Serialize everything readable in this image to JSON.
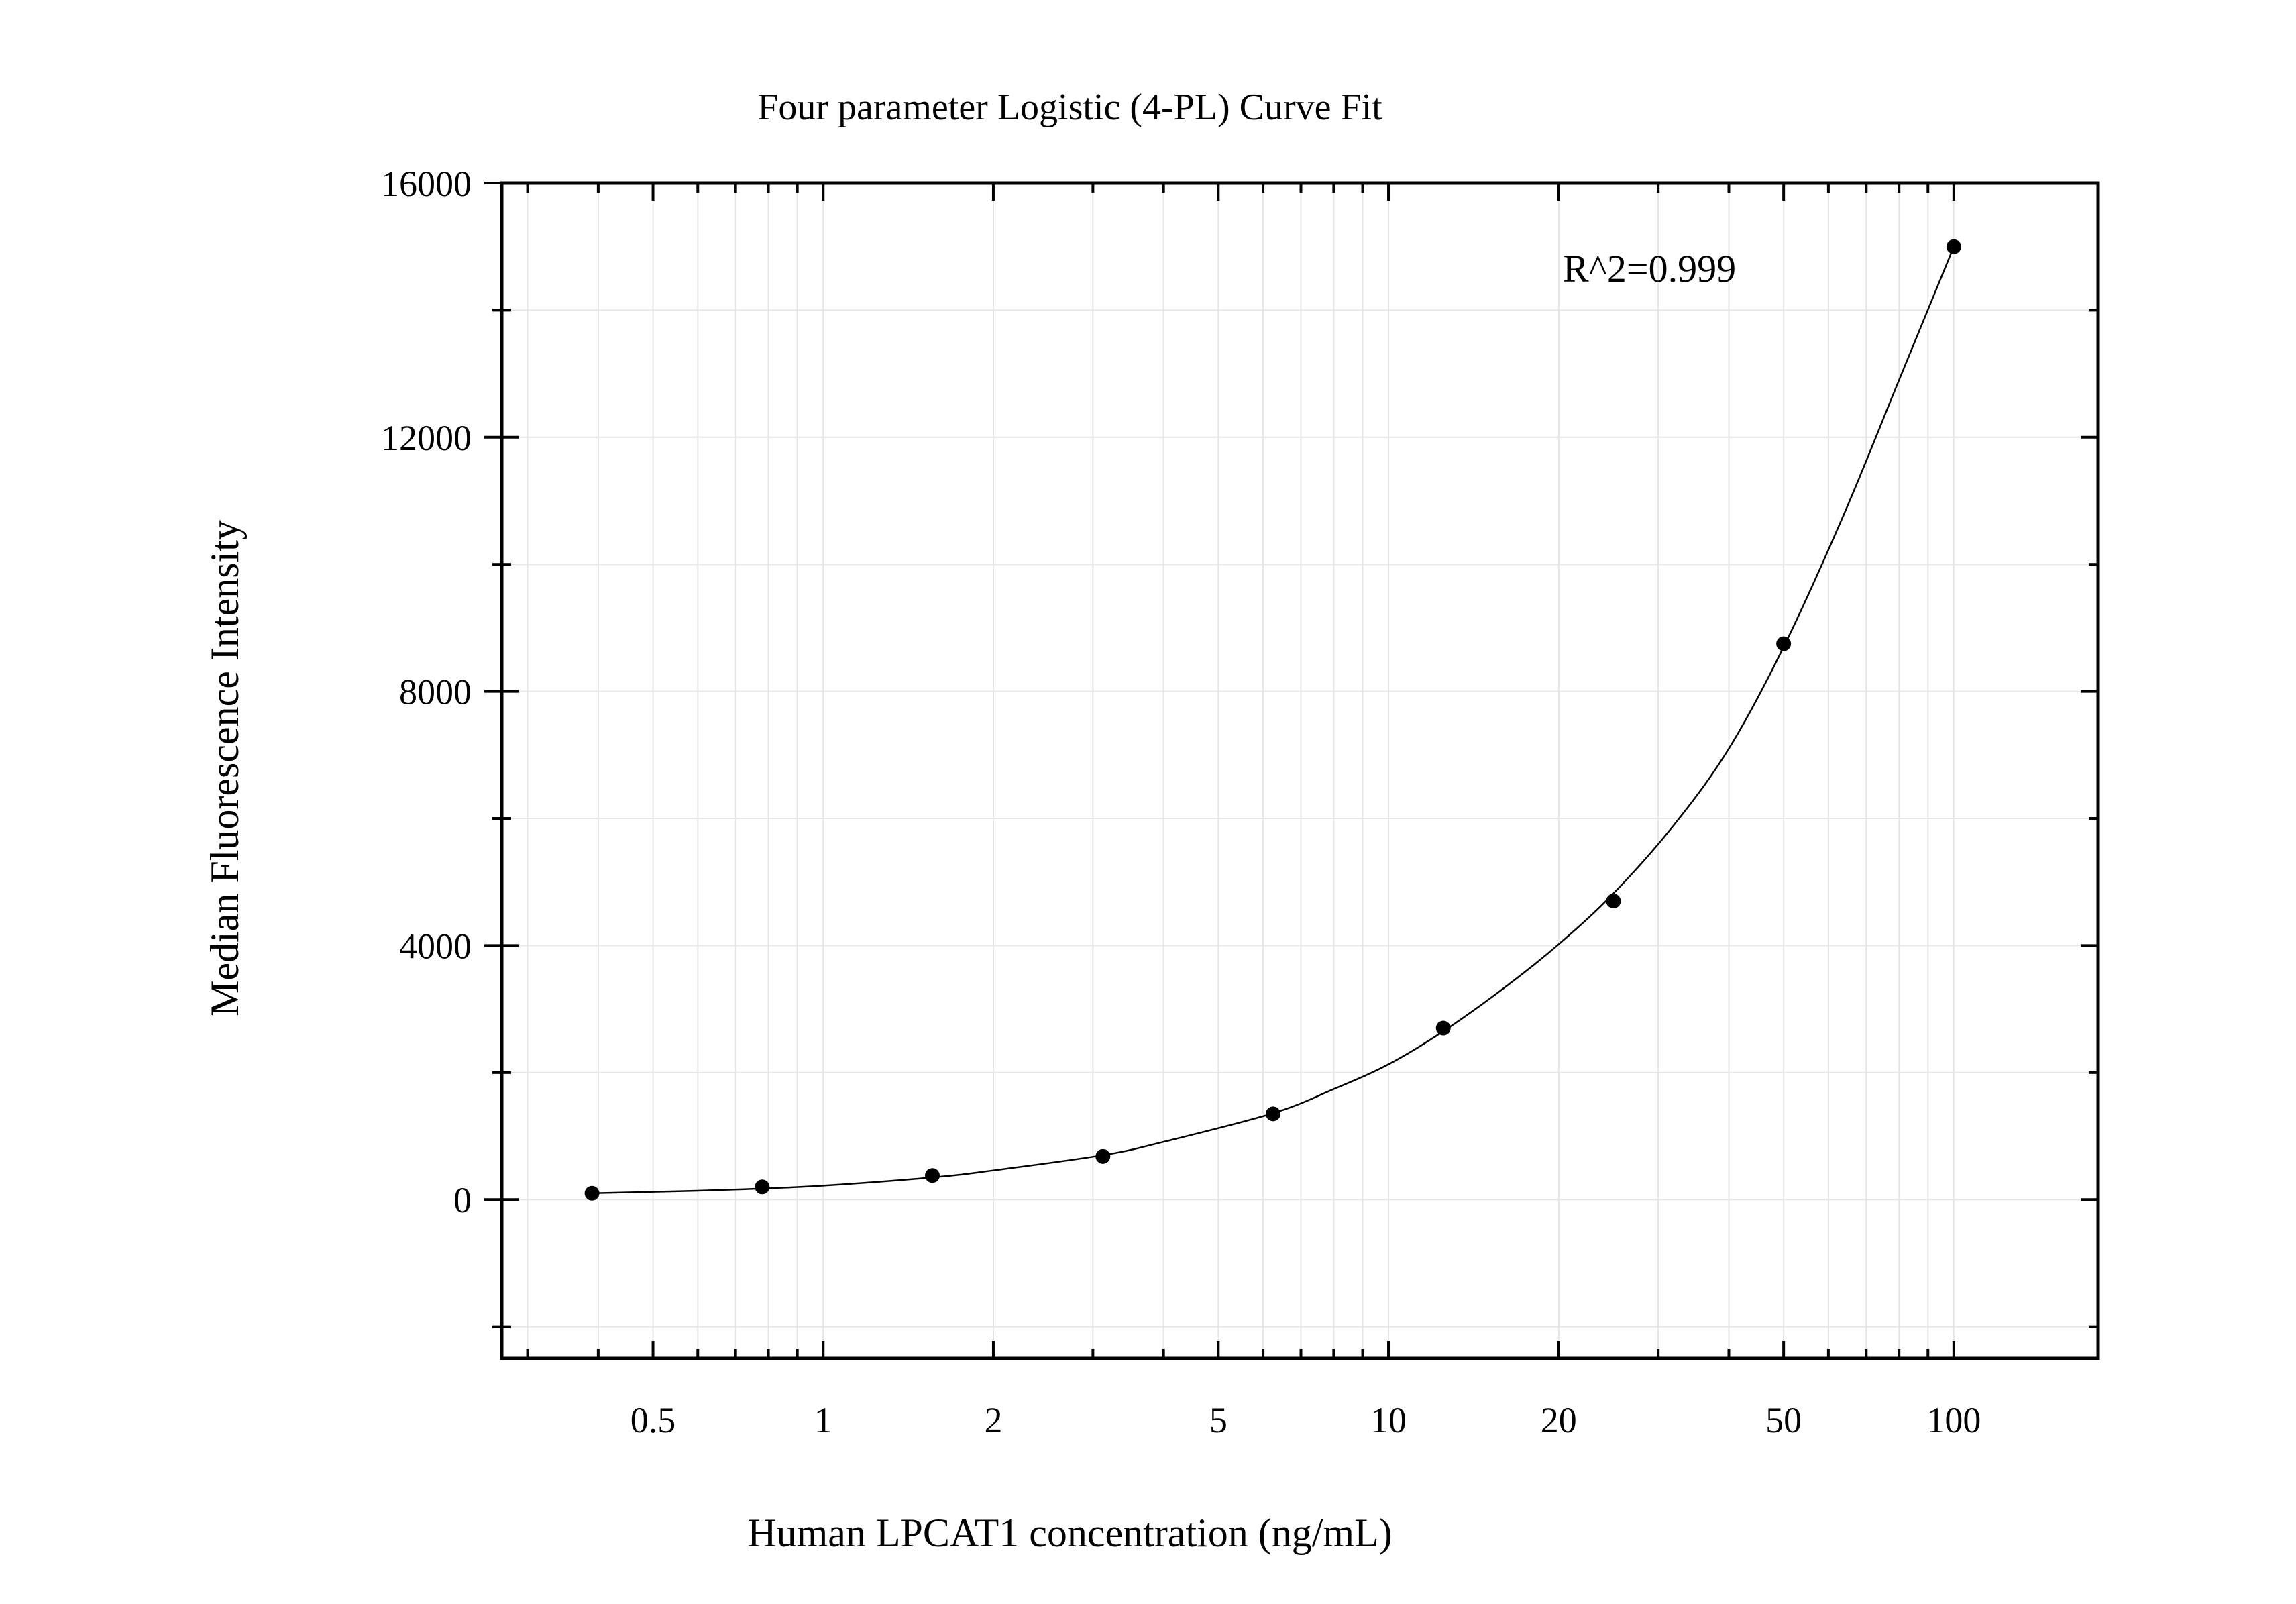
{
  "chart_data": {
    "type": "scatter",
    "title": "Four parameter Logistic (4-PL) Curve Fit",
    "xlabel": "Human LPCAT1 concentration (ng/mL)",
    "ylabel": "Median Fluorescence Intensity",
    "x_scale": "log",
    "xlim": [
      0.27,
      180
    ],
    "ylim": [
      -2500,
      16000
    ],
    "x_ticks": [
      0.5,
      1,
      2,
      5,
      10,
      20,
      50,
      100
    ],
    "x_tick_labels": [
      "0.5",
      "1",
      "2",
      "5",
      "10",
      "20",
      "50",
      "100"
    ],
    "y_ticks": [
      0,
      4000,
      8000,
      12000,
      16000
    ],
    "y_tick_labels": [
      "0",
      "4000",
      "8000",
      "12000",
      "16000"
    ],
    "grid": true,
    "annotation": "R^2=0.999",
    "series": [
      {
        "x": [
          0.39,
          0.78,
          1.56,
          3.125,
          6.25,
          12.5,
          25,
          50,
          100
        ],
        "y": [
          100,
          200,
          380,
          680,
          1350,
          2700,
          4700,
          8750,
          15000
        ]
      }
    ],
    "fit_curve": {
      "model": "4PL",
      "x_range": [
        0.39,
        100
      ],
      "points_x": [
        0.39,
        0.6,
        0.78,
        1,
        1.56,
        2,
        3.125,
        4,
        6.25,
        8,
        10,
        12.5,
        16,
        20,
        25,
        32,
        40,
        50,
        64,
        80,
        100
      ],
      "points_y": [
        100,
        140,
        175,
        220,
        350,
        460,
        700,
        910,
        1360,
        1740,
        2130,
        2650,
        3330,
        4020,
        4820,
        5900,
        7100,
        8700,
        10800,
        12900,
        15000
      ]
    },
    "colors": {
      "axis": "#000000",
      "grid": "#e6e6e6",
      "points": "#000000",
      "curve": "#000000"
    }
  }
}
